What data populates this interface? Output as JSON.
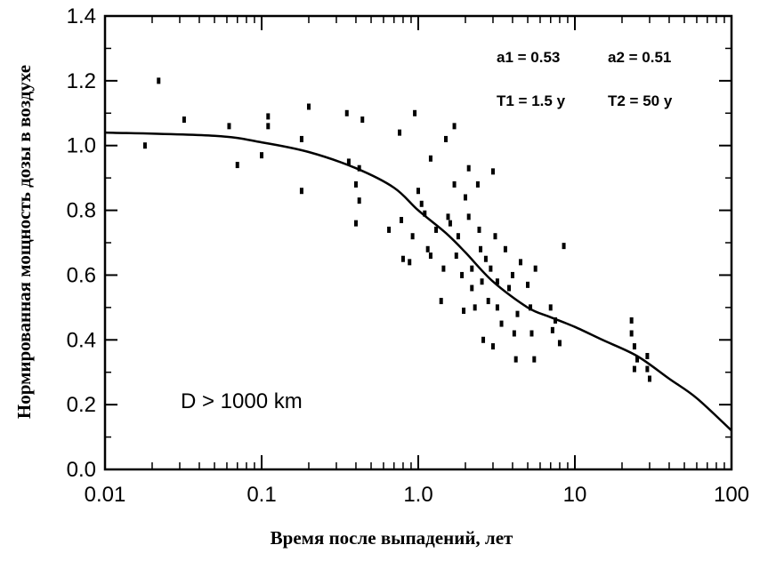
{
  "chart_data": {
    "type": "scatter",
    "xscale": "log",
    "xlim": [
      0.01,
      100
    ],
    "ylim": [
      0.0,
      1.4
    ],
    "xticks": [
      0.01,
      0.1,
      1.0,
      10,
      100
    ],
    "xtick_labels": [
      "0.01",
      "0.1",
      "1.0",
      "10",
      "100"
    ],
    "yticks": [
      0.0,
      0.2,
      0.4,
      0.6,
      0.8,
      1.0,
      1.2,
      1.4
    ],
    "ytick_labels": [
      "0.0",
      "0.2",
      "0.4",
      "0.6",
      "0.8",
      "1.0",
      "1.2",
      "1.4"
    ],
    "xlabel": "Время после выпадений, лет",
    "ylabel": "Нормированная мощность дозы в воздухе",
    "grid": false,
    "annotations": {
      "a1": "a1 = 0.53",
      "a2": "a2 = 0.51",
      "t1": "T1 = 1.5 y",
      "t2": "T2 = 50 y",
      "region": "D > 1000 km"
    },
    "fit_params": {
      "a1": 0.53,
      "a2": 0.51,
      "T1": 1.5,
      "T2": 50
    },
    "fit_curve": {
      "x": [
        0.01,
        0.05,
        0.1,
        0.2,
        0.4,
        0.7,
        1.0,
        1.5,
        2.0,
        3.0,
        5.0,
        7.0,
        10,
        15,
        25,
        40,
        60,
        100
      ],
      "y": [
        1.04,
        1.03,
        1.01,
        0.98,
        0.93,
        0.87,
        0.8,
        0.73,
        0.67,
        0.58,
        0.5,
        0.47,
        0.44,
        0.4,
        0.35,
        0.28,
        0.22,
        0.12
      ]
    },
    "points": [
      {
        "x": 0.018,
        "y": 1.0
      },
      {
        "x": 0.022,
        "y": 1.2
      },
      {
        "x": 0.032,
        "y": 1.08
      },
      {
        "x": 0.062,
        "y": 1.06
      },
      {
        "x": 0.07,
        "y": 0.94
      },
      {
        "x": 0.1,
        "y": 0.97
      },
      {
        "x": 0.11,
        "y": 1.09
      },
      {
        "x": 0.11,
        "y": 1.06
      },
      {
        "x": 0.18,
        "y": 1.02
      },
      {
        "x": 0.18,
        "y": 0.86
      },
      {
        "x": 0.2,
        "y": 1.12
      },
      {
        "x": 0.35,
        "y": 1.1
      },
      {
        "x": 0.36,
        "y": 0.95
      },
      {
        "x": 0.4,
        "y": 0.88
      },
      {
        "x": 0.42,
        "y": 0.93
      },
      {
        "x": 0.42,
        "y": 0.83
      },
      {
        "x": 0.44,
        "y": 1.08
      },
      {
        "x": 0.4,
        "y": 0.76
      },
      {
        "x": 0.65,
        "y": 0.74
      },
      {
        "x": 0.76,
        "y": 1.04
      },
      {
        "x": 0.78,
        "y": 0.77
      },
      {
        "x": 0.8,
        "y": 0.65
      },
      {
        "x": 0.88,
        "y": 0.64
      },
      {
        "x": 0.92,
        "y": 0.72
      },
      {
        "x": 0.95,
        "y": 1.1
      },
      {
        "x": 1.0,
        "y": 0.86
      },
      {
        "x": 1.05,
        "y": 0.82
      },
      {
        "x": 1.1,
        "y": 0.79
      },
      {
        "x": 1.15,
        "y": 0.68
      },
      {
        "x": 1.2,
        "y": 0.96
      },
      {
        "x": 1.2,
        "y": 0.66
      },
      {
        "x": 1.3,
        "y": 0.74
      },
      {
        "x": 1.4,
        "y": 0.52
      },
      {
        "x": 1.45,
        "y": 0.62
      },
      {
        "x": 1.5,
        "y": 1.02
      },
      {
        "x": 1.55,
        "y": 0.78
      },
      {
        "x": 1.6,
        "y": 0.76
      },
      {
        "x": 1.7,
        "y": 1.06
      },
      {
        "x": 1.7,
        "y": 0.88
      },
      {
        "x": 1.75,
        "y": 0.66
      },
      {
        "x": 1.8,
        "y": 0.72
      },
      {
        "x": 1.9,
        "y": 0.6
      },
      {
        "x": 1.95,
        "y": 0.49
      },
      {
        "x": 2.0,
        "y": 0.84
      },
      {
        "x": 2.1,
        "y": 0.93
      },
      {
        "x": 2.1,
        "y": 0.78
      },
      {
        "x": 2.2,
        "y": 0.62
      },
      {
        "x": 2.2,
        "y": 0.56
      },
      {
        "x": 2.3,
        "y": 0.5
      },
      {
        "x": 2.4,
        "y": 0.88
      },
      {
        "x": 2.45,
        "y": 0.74
      },
      {
        "x": 2.5,
        "y": 0.68
      },
      {
        "x": 2.55,
        "y": 0.58
      },
      {
        "x": 2.6,
        "y": 0.4
      },
      {
        "x": 2.7,
        "y": 0.65
      },
      {
        "x": 2.8,
        "y": 0.52
      },
      {
        "x": 2.9,
        "y": 0.62
      },
      {
        "x": 3.0,
        "y": 0.92
      },
      {
        "x": 3.0,
        "y": 0.38
      },
      {
        "x": 3.1,
        "y": 0.72
      },
      {
        "x": 3.2,
        "y": 0.58
      },
      {
        "x": 3.2,
        "y": 0.5
      },
      {
        "x": 3.4,
        "y": 0.45
      },
      {
        "x": 3.6,
        "y": 0.68
      },
      {
        "x": 3.8,
        "y": 0.56
      },
      {
        "x": 4.0,
        "y": 0.6
      },
      {
        "x": 4.1,
        "y": 0.42
      },
      {
        "x": 4.2,
        "y": 0.34
      },
      {
        "x": 4.3,
        "y": 0.48
      },
      {
        "x": 4.5,
        "y": 0.64
      },
      {
        "x": 5.0,
        "y": 0.57
      },
      {
        "x": 5.2,
        "y": 0.5
      },
      {
        "x": 5.3,
        "y": 0.42
      },
      {
        "x": 5.5,
        "y": 0.34
      },
      {
        "x": 5.6,
        "y": 0.62
      },
      {
        "x": 7.0,
        "y": 0.5
      },
      {
        "x": 7.2,
        "y": 0.43
      },
      {
        "x": 7.5,
        "y": 0.46
      },
      {
        "x": 8.0,
        "y": 0.39
      },
      {
        "x": 8.5,
        "y": 0.69
      },
      {
        "x": 23.0,
        "y": 0.46
      },
      {
        "x": 23.0,
        "y": 0.42
      },
      {
        "x": 24.0,
        "y": 0.38
      },
      {
        "x": 24.0,
        "y": 0.31
      },
      {
        "x": 25.0,
        "y": 0.34
      },
      {
        "x": 29.0,
        "y": 0.35
      },
      {
        "x": 29.0,
        "y": 0.31
      },
      {
        "x": 30.0,
        "y": 0.28
      }
    ]
  }
}
